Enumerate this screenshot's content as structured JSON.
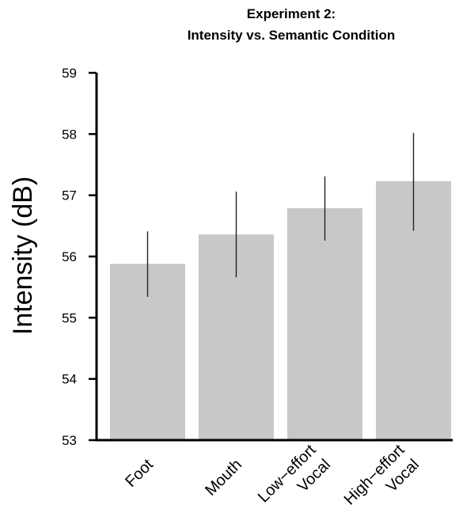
{
  "chart_data": {
    "type": "bar",
    "title": [
      "Experiment 2:",
      "Intensity vs. Semantic Condition"
    ],
    "xlabel": "",
    "ylabel": "Intensity (dB)",
    "ylim": [
      53,
      59
    ],
    "yticks": [
      53,
      54,
      55,
      56,
      57,
      58,
      59
    ],
    "categories": [
      [
        "Foot"
      ],
      [
        "Mouth"
      ],
      [
        "Low−effort",
        "Vocal"
      ],
      [
        "High−effort",
        "Vocal"
      ]
    ],
    "values": [
      55.88,
      56.36,
      56.79,
      57.23
    ],
    "error_low": [
      55.34,
      55.66,
      56.26,
      56.42
    ],
    "error_high": [
      56.41,
      57.06,
      57.31,
      58.02
    ],
    "colors": {
      "bar": "#c7c8ca",
      "error": "#222222",
      "axis": "#000000"
    },
    "grid": false,
    "legend": "none"
  }
}
